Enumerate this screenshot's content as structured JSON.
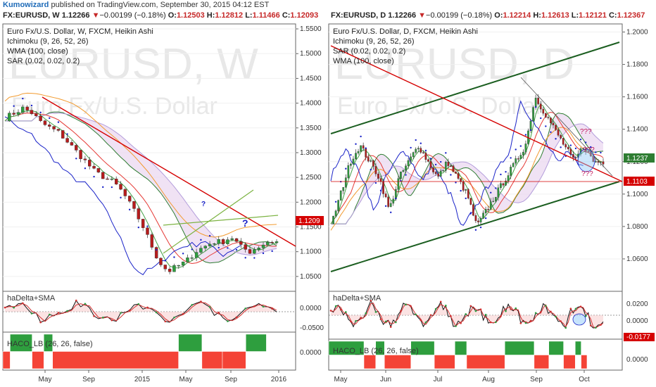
{
  "header": {
    "username": "Kumowizard",
    "published_text": " published on TradingView.com, September 30, 2015 04:12 EST"
  },
  "left": {
    "symbol": "FX:EURUSD, W",
    "last": "1.12266",
    "change": "−0.00199 (−0.18%)",
    "open_key": "O:",
    "open": "1.12503",
    "high_key": "H:",
    "high": "1.12812",
    "low_key": "L:",
    "low": "1.11466",
    "close_key": "C:",
    "close": "1.12093",
    "legend": [
      "Euro Fx/U.S. Dollar, W, FXCM, Heikin Ashi",
      "Ichimoku (9, 26, 52, 26)",
      "WMA (100, close)",
      "SAR (0.02, 0.02, 0.2)"
    ],
    "watermark_symbol": "EURUSD, W",
    "watermark_name": "Euro Fx/U.S. Dollar",
    "price_ticks": [
      "1.5500",
      "1.5000",
      "1.4500",
      "1.4000",
      "1.3500",
      "1.3000",
      "1.2500",
      "1.2000",
      "1.1500",
      "1.1000",
      "1.0500",
      "1.0000"
    ],
    "price_marker": "1.1209",
    "question_marks": [
      "?",
      "?"
    ],
    "osc1_label": "haDelta+SMA",
    "osc1_ticks": [
      "0.0000",
      "-0.0500"
    ],
    "osc2_label": "HACO_LB (26, 26, false)",
    "osc2_ticks": [
      "0.0000"
    ],
    "x_ticks": [
      "May",
      "Sep",
      "2015",
      "May",
      "Sep",
      "2016"
    ],
    "colors": {
      "price_line": "#d50000",
      "channel": "#388e3c",
      "cloud": "#e8d3ee"
    }
  },
  "right": {
    "symbol": "FX:EURUSD, D",
    "last": "1.12266",
    "change": "−0.00199 (−0.18%)",
    "open_key": "O:",
    "open": "1.12214",
    "high_key": "H:",
    "high": "1.12613",
    "low_key": "L:",
    "low": "1.12121",
    "close_key": "C:",
    "close": "1.12367",
    "legend": [
      "Euro Fx/U.S. Dollar, D, FXCM, Heikin Ashi",
      "Ichimoku (9, 26, 52, 26)",
      "SAR (0.02, 0.02, 0.2)",
      "WMA (100, close)"
    ],
    "watermark_symbol": "EURUSD, D",
    "watermark_name": "Euro Fx/U.S. Dollar",
    "price_ticks": [
      "1.2000",
      "1.1800",
      "1.1600",
      "1.1400",
      "1.1200",
      "1.1000",
      "1.0800",
      "1.0600"
    ],
    "marker_green": "1.1237",
    "marker_red": "1.1103",
    "question_marks": [
      "???",
      "???",
      "???"
    ],
    "osc1_label": "haDelta+SMA",
    "osc1_ticks": [
      "0.0200",
      "0.0000",
      "-0.0200"
    ],
    "osc1_marker": "-0.0177",
    "osc2_label": "HACO_LB (26, 26, false)",
    "osc2_ticks": [
      "0.0000"
    ],
    "x_ticks": [
      "May",
      "Jun",
      "Jul",
      "Aug",
      "Sep",
      "Oct"
    ],
    "colors": {
      "price_line": "#d50000",
      "channel": "#1b5e20",
      "marker_green": "#2e7d32",
      "marker_red": "#d50000"
    }
  },
  "chart_data": [
    {
      "type": "candlestick",
      "title": "Euro Fx/U.S. Dollar, W, FXCM, Heikin Ashi",
      "ylim": [
        1.02,
        1.56
      ],
      "x_ticks": [
        "May",
        "Sep",
        "2015",
        "May",
        "Sep",
        "2016"
      ],
      "last_price": 1.1209,
      "approx_close_path": [
        1.37,
        1.38,
        1.39,
        1.38,
        1.36,
        1.35,
        1.34,
        1.32,
        1.3,
        1.28,
        1.26,
        1.25,
        1.24,
        1.22,
        1.19,
        1.16,
        1.12,
        1.08,
        1.06,
        1.07,
        1.08,
        1.1,
        1.11,
        1.12,
        1.12,
        1.13,
        1.11,
        1.1,
        1.11,
        1.12,
        1.12
      ]
    },
    {
      "type": "candlestick",
      "title": "Euro Fx/U.S. Dollar, D, FXCM, Heikin Ashi",
      "ylim": [
        1.04,
        1.205
      ],
      "x_ticks": [
        "May",
        "Jun",
        "Jul",
        "Aug",
        "Sep",
        "Oct"
      ],
      "last_price": 1.1237,
      "marker_red": 1.1103,
      "approx_close_path": [
        1.08,
        1.1,
        1.12,
        1.13,
        1.12,
        1.11,
        1.09,
        1.11,
        1.12,
        1.13,
        1.12,
        1.11,
        1.12,
        1.11,
        1.1,
        1.08,
        1.09,
        1.1,
        1.11,
        1.12,
        1.13,
        1.16,
        1.15,
        1.14,
        1.13,
        1.12,
        1.13,
        1.12,
        1.12
      ]
    }
  ]
}
